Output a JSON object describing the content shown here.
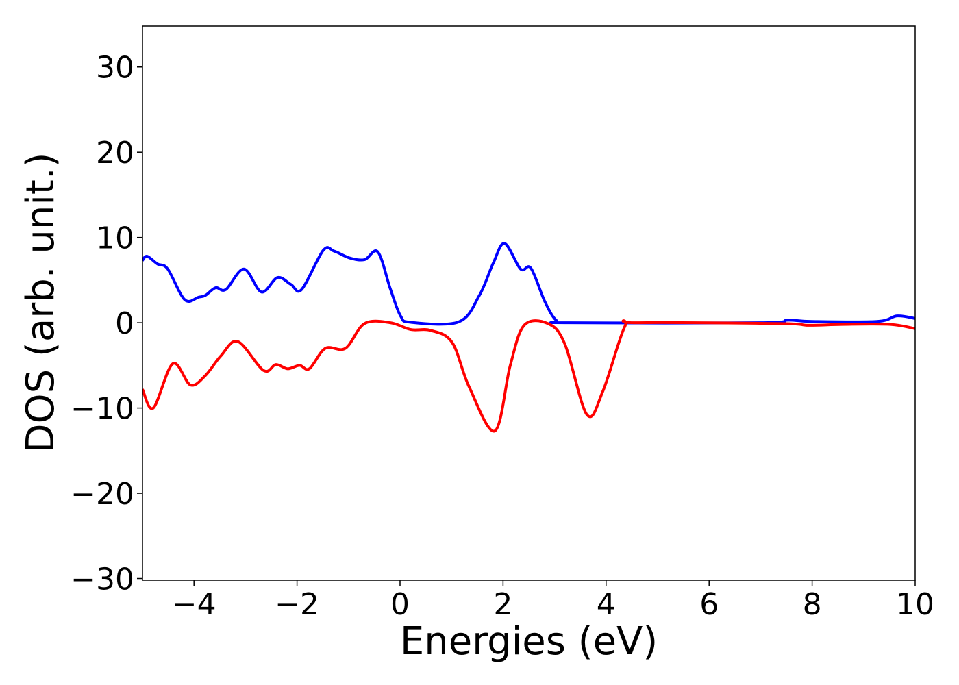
{
  "chart_data": {
    "type": "line",
    "x_label": "Energies (eV)",
    "y_label": "DOS (arb. unit.)",
    "xlim": [
      -5,
      10
    ],
    "ylim": [
      -30.2,
      34.8
    ],
    "xticks": [
      {
        "value": -4,
        "label": "−4"
      },
      {
        "value": -2,
        "label": "−2"
      },
      0,
      2,
      4,
      6,
      8,
      10
    ],
    "yticks": [
      {
        "value": -30,
        "label": "−30"
      },
      {
        "value": -20,
        "label": "−20"
      },
      {
        "value": -10,
        "label": "−10"
      },
      0,
      10,
      20,
      30
    ],
    "series": [
      {
        "color": "#0000ff",
        "x": [
          -5,
          -4.91,
          -4.71,
          -4.51,
          -4.18,
          -3.91,
          -3.78,
          -3.58,
          -3.38,
          -3.03,
          -2.69,
          -2.38,
          -2.12,
          -1.91,
          -1.49,
          -1.28,
          -0.98,
          -0.69,
          -0.43,
          -0.19,
          0.01,
          0.21,
          1.14,
          1.54,
          1.81,
          2.03,
          2.34,
          2.54,
          2.81,
          3.03,
          3.27,
          6.99,
          7.53,
          7.99,
          9.26,
          9.65,
          10
        ],
        "values": [
          7.3,
          7.8,
          6.9,
          6.3,
          2.7,
          3.0,
          3.2,
          4.1,
          3.9,
          6.3,
          3.6,
          5.3,
          4.5,
          3.9,
          8.5,
          8.4,
          7.6,
          7.4,
          8.3,
          4,
          0.8,
          0.05,
          0.1,
          3.2,
          7,
          9.3,
          6.3,
          6.4,
          2.5,
          0.3,
          0,
          0,
          0.3,
          0.15,
          0.15,
          0.8,
          0.5
        ]
      },
      {
        "color": "#ff0000",
        "x": [
          -5,
          -4.79,
          -4.41,
          -4.07,
          -3.78,
          -3.48,
          -3.15,
          -2.65,
          -2.41,
          -2.18,
          -1.95,
          -1.76,
          -1.45,
          -1.06,
          -0.69,
          -0.19,
          0.21,
          0.59,
          1.01,
          1.34,
          1.84,
          2.14,
          2.41,
          2.87,
          3.2,
          3.63,
          3.94,
          4.36,
          4.6,
          7.39,
          7.93,
          8.59,
          9.52,
          10
        ],
        "values": [
          -7.8,
          -10,
          -4.8,
          -7.3,
          -6.2,
          -3.9,
          -2.2,
          -5.6,
          -4.9,
          -5.4,
          -5,
          -5.4,
          -3,
          -3,
          -0.1,
          0,
          -0.8,
          -0.9,
          -2.3,
          -7.5,
          -12.7,
          -5,
          -0.3,
          -0.1,
          -2.5,
          -10.8,
          -8,
          -0.5,
          0,
          -0.1,
          -0.3,
          -0.2,
          -0.2,
          -0.7
        ]
      }
    ]
  }
}
